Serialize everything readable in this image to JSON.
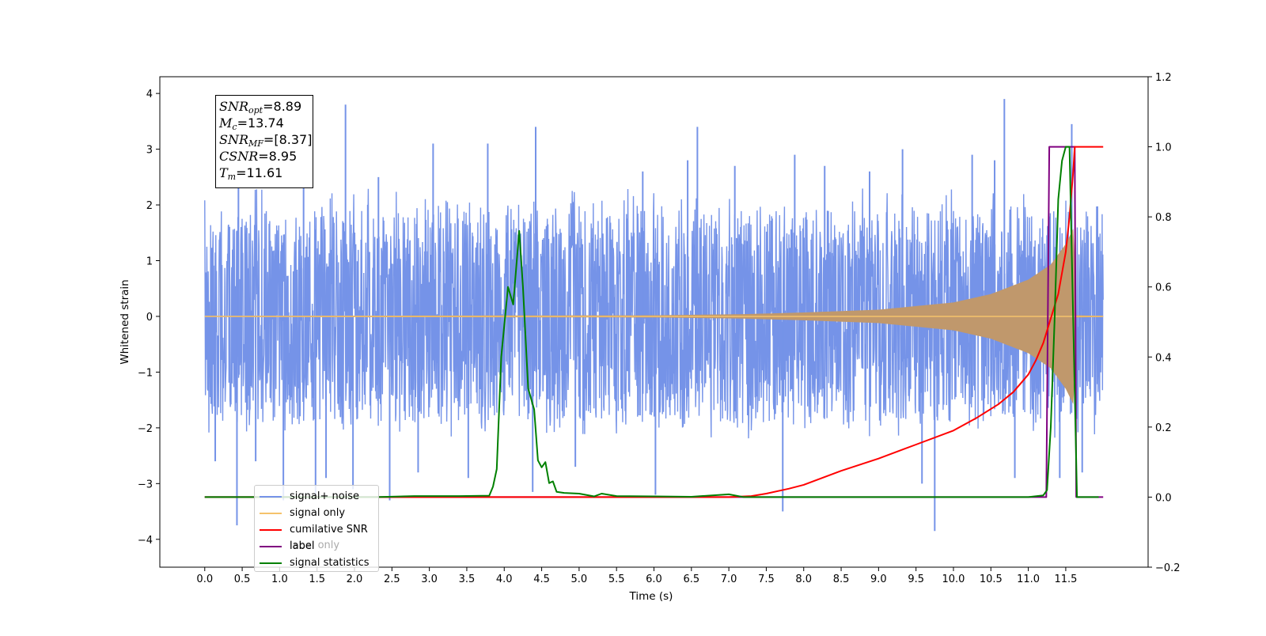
{
  "chart_data": {
    "type": "line",
    "xlabel": "Time (s)",
    "ylabel": "Whitened strain",
    "xlim": [
      -0.6,
      12.6
    ],
    "ylim": [
      -4.5,
      4.3
    ],
    "y2lim": [
      -0.2,
      1.2
    ],
    "x_ticks": [
      "0.0",
      "0.5",
      "1.0",
      "1.5",
      "2.0",
      "2.5",
      "3.0",
      "3.5",
      "4.0",
      "4.5",
      "5.0",
      "5.5",
      "6.0",
      "6.5",
      "7.0",
      "7.5",
      "8.0",
      "8.5",
      "9.0",
      "9.5",
      "10.0",
      "10.5",
      "11.0",
      "11.5"
    ],
    "y_ticks": [
      "4",
      "3",
      "2",
      "1",
      "0",
      "−1",
      "−2",
      "−3",
      "−4"
    ],
    "y2_ticks": [
      "1.2",
      "1.0",
      "0.8",
      "0.6",
      "0.4",
      "0.2",
      "0.0",
      "−0.2"
    ],
    "annotation": {
      "snr_opt": "=8.89",
      "mc": "=13.74",
      "snr_mf": "=[8.37]",
      "csnr": "=8.95",
      "tm": "=11.61"
    },
    "legend": {
      "placement": "lower-left",
      "entries": [
        "signal+ noise",
        "signal only",
        "cumilative SNR",
        "label",
        "signal statistics"
      ],
      "overlapped_text": "label only"
    },
    "series": [
      {
        "name": "signal+ noise",
        "axis": "left",
        "color": "#7593e8",
        "x_range": [
          0.0,
          12.0
        ],
        "envelope": [
          -2.2,
          2.3
        ],
        "spikes": [
          [
            0.14,
            -2.6
          ],
          [
            0.43,
            -3.75
          ],
          [
            0.45,
            2.7
          ],
          [
            0.68,
            -2.6
          ],
          [
            1.05,
            -3.3
          ],
          [
            1.32,
            3.4
          ],
          [
            1.48,
            -3.2
          ],
          [
            1.62,
            -2.9
          ],
          [
            1.88,
            3.8
          ],
          [
            1.98,
            -3.1
          ],
          [
            2.32,
            2.5
          ],
          [
            2.47,
            -3.3
          ],
          [
            2.85,
            -2.8
          ],
          [
            3.05,
            3.1
          ],
          [
            3.52,
            -2.9
          ],
          [
            3.78,
            3.1
          ],
          [
            4.42,
            3.4
          ],
          [
            4.38,
            -3.15
          ],
          [
            4.95,
            -2.7
          ],
          [
            5.85,
            2.6
          ],
          [
            6.02,
            -3.2
          ],
          [
            6.45,
            2.8
          ],
          [
            6.58,
            3.4
          ],
          [
            7.08,
            2.7
          ],
          [
            7.72,
            -3.5
          ],
          [
            7.88,
            2.9
          ],
          [
            8.28,
            2.7
          ],
          [
            8.88,
            2.6
          ],
          [
            9.32,
            3.0
          ],
          [
            9.58,
            -3.0
          ],
          [
            9.75,
            -3.85
          ],
          [
            10.25,
            2.9
          ],
          [
            10.55,
            2.8
          ],
          [
            10.68,
            3.9
          ],
          [
            10.82,
            -2.9
          ],
          [
            11.42,
            -2.9
          ],
          [
            11.58,
            3.45
          ],
          [
            11.72,
            -2.8
          ]
        ]
      },
      {
        "name": "signal only",
        "axis": "left",
        "color": "#f5c26b",
        "fill_color": "#c0986c",
        "x_range": [
          0.0,
          12.0
        ],
        "chirp_envelope": [
          [
            0,
            0.01
          ],
          [
            6,
            0.02
          ],
          [
            7.2,
            0.04
          ],
          [
            8.0,
            0.07
          ],
          [
            9.0,
            0.12
          ],
          [
            10.0,
            0.25
          ],
          [
            10.5,
            0.4
          ],
          [
            11.0,
            0.66
          ],
          [
            11.3,
            0.93
          ],
          [
            11.5,
            1.3
          ],
          [
            11.61,
            1.6
          ],
          [
            11.64,
            0.02
          ],
          [
            12.0,
            0.01
          ]
        ]
      },
      {
        "name": "cumilative SNR",
        "axis": "right",
        "color": "#ff0000",
        "x": [
          0.0,
          6.5,
          7.0,
          7.3,
          7.5,
          7.8,
          8.0,
          8.5,
          9.0,
          9.5,
          10.0,
          10.3,
          10.6,
          10.8,
          11.0,
          11.1,
          11.2,
          11.3,
          11.4,
          11.45,
          11.5,
          11.55,
          11.6,
          11.62,
          12.0
        ],
        "values": [
          0.0,
          0.0,
          0.0,
          0.003,
          0.01,
          0.024,
          0.035,
          0.075,
          0.11,
          0.15,
          0.19,
          0.225,
          0.265,
          0.3,
          0.35,
          0.39,
          0.44,
          0.51,
          0.58,
          0.64,
          0.7,
          0.8,
          0.93,
          1.0,
          1.0
        ]
      },
      {
        "name": "label",
        "axis": "right",
        "color": "#800080",
        "x": [
          0.0,
          11.24,
          11.28,
          11.62,
          11.64,
          12.0
        ],
        "values": [
          0.0,
          0.0,
          1.0,
          1.0,
          0.0,
          0.0
        ]
      },
      {
        "name": "signal statistics",
        "axis": "right",
        "color": "#008000",
        "x": [
          0.0,
          2.3,
          2.8,
          3.4,
          3.8,
          3.85,
          3.9,
          3.96,
          4.05,
          4.12,
          4.2,
          4.25,
          4.32,
          4.4,
          4.45,
          4.5,
          4.55,
          4.6,
          4.65,
          4.7,
          4.8,
          5.0,
          5.2,
          5.3,
          5.5,
          6.0,
          6.5,
          7.0,
          7.2,
          8.0,
          9.0,
          10.0,
          11.0,
          11.2,
          11.25,
          11.3,
          11.35,
          11.4,
          11.45,
          11.5,
          11.55,
          11.6,
          11.65,
          11.7,
          11.94
        ],
        "values": [
          0.0,
          0.0,
          0.003,
          0.003,
          0.004,
          0.03,
          0.08,
          0.4,
          0.6,
          0.55,
          0.76,
          0.6,
          0.31,
          0.25,
          0.105,
          0.085,
          0.1,
          0.04,
          0.045,
          0.015,
          0.012,
          0.01,
          0.002,
          0.01,
          0.003,
          0.002,
          0.001,
          0.008,
          0.0,
          0.0,
          0.0,
          0.0,
          0.0,
          0.005,
          0.02,
          0.2,
          0.5,
          0.85,
          0.96,
          1.0,
          1.0,
          0.5,
          0.0,
          0.0,
          0.0
        ]
      }
    ]
  }
}
